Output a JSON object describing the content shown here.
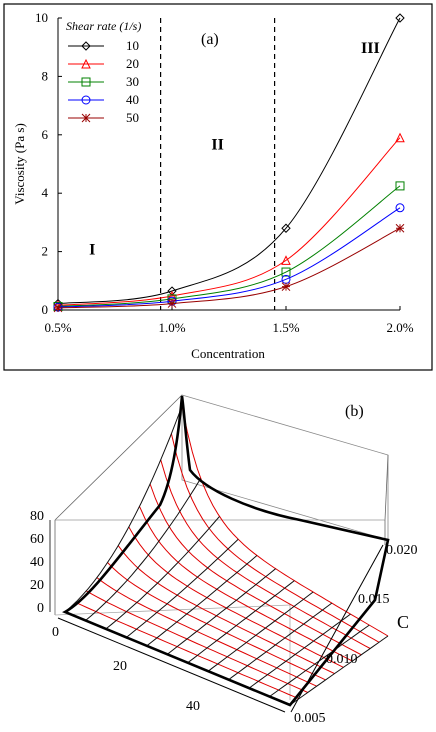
{
  "chart_data": [
    {
      "panel": "(a)",
      "type": "line",
      "xlabel": "Concentration",
      "ylabel": "Viscosity (Pa s)",
      "x": [
        "0.5%",
        "1.0%",
        "1.5%",
        "2.0%"
      ],
      "x_values": [
        0.5,
        1.0,
        1.5,
        2.0
      ],
      "xlim": [
        0.5,
        2.0
      ],
      "ylim": [
        0,
        10
      ],
      "yticks": [
        "0",
        "2",
        "4",
        "6",
        "8",
        "10"
      ],
      "legend_title": "Shear rate (1/s)",
      "legend_position": "top-left",
      "series": [
        {
          "name": "10",
          "marker": "diamond",
          "color": "#000000",
          "values": [
            0.22,
            0.65,
            2.8,
            10.0
          ]
        },
        {
          "name": "20",
          "marker": "triangle",
          "color": "#ff0000",
          "values": [
            0.16,
            0.48,
            1.7,
            5.9
          ]
        },
        {
          "name": "30",
          "marker": "square",
          "color": "#008000",
          "values": [
            0.12,
            0.38,
            1.3,
            4.25
          ]
        },
        {
          "name": "40",
          "marker": "circle",
          "color": "#0000ff",
          "values": [
            0.1,
            0.3,
            1.05,
            3.5
          ]
        },
        {
          "name": "50",
          "marker": "star",
          "color": "#990000",
          "values": [
            0.07,
            0.22,
            0.8,
            2.8
          ]
        }
      ],
      "regions": [
        {
          "label": "I"
        },
        {
          "label": "II"
        },
        {
          "label": "III"
        }
      ],
      "dividers": [
        0.95,
        1.45
      ]
    },
    {
      "panel": "(b)",
      "type": "surface",
      "z_ticks": [
        "0",
        "20",
        "40",
        "60",
        "80"
      ],
      "shear_axis_ticks": [
        "0",
        "20",
        "40"
      ],
      "c_axis_label": "C",
      "c_axis_ticks": [
        "0.005",
        "0.010",
        "0.015",
        "0.020"
      ]
    }
  ]
}
